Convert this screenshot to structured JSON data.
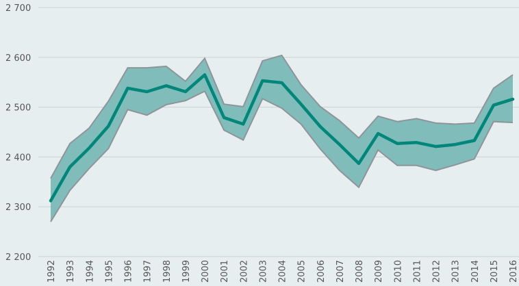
{
  "chart_data": {
    "type": "line",
    "categories": [
      "1992",
      "1993",
      "1994",
      "1995",
      "1996",
      "1997",
      "1998",
      "1999",
      "2000",
      "2001",
      "2002",
      "2003",
      "2004",
      "2005",
      "2006",
      "2007",
      "2008",
      "2009",
      "2010",
      "2011",
      "2012",
      "2013",
      "2014",
      "2015",
      "2016"
    ],
    "values": [
      2312,
      2380,
      2418,
      2462,
      2538,
      2531,
      2543,
      2531,
      2565,
      2479,
      2466,
      2553,
      2549,
      2506,
      2461,
      2425,
      2387,
      2447,
      2427,
      2429,
      2421,
      2425,
      2433,
      2504,
      2516
    ],
    "band": {
      "upper": [
        2357,
        2427,
        2458,
        2512,
        2579,
        2579,
        2582,
        2552,
        2598,
        2506,
        2501,
        2593,
        2604,
        2545,
        2501,
        2473,
        2438,
        2482,
        2471,
        2477,
        2468,
        2466,
        2468,
        2538,
        2565
      ],
      "lower": [
        2270,
        2333,
        2377,
        2417,
        2495,
        2484,
        2505,
        2513,
        2532,
        2454,
        2434,
        2517,
        2498,
        2466,
        2416,
        2373,
        2339,
        2414,
        2383,
        2383,
        2373,
        2384,
        2396,
        2471,
        2469
      ],
      "color": "#80bcba",
      "edge_color": "#8e9598"
    },
    "color": "#00877a",
    "ylim": [
      2200,
      2700
    ],
    "yticks": [
      {
        "value": 2200,
        "label": "2 200"
      },
      {
        "value": 2300,
        "label": "2 300"
      },
      {
        "value": 2400,
        "label": "2 400"
      },
      {
        "value": 2500,
        "label": "2 500"
      },
      {
        "value": 2600,
        "label": "2 600"
      },
      {
        "value": 2700,
        "label": "2 700"
      }
    ],
    "grid": true
  }
}
